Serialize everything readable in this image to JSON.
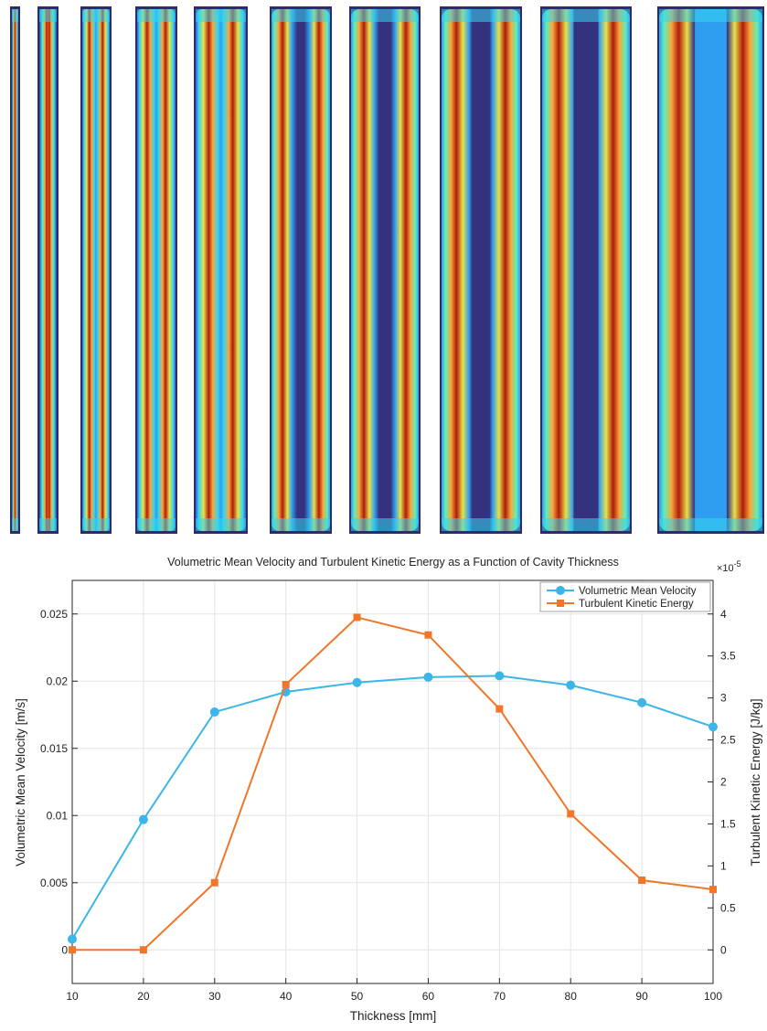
{
  "contour_strip": {
    "panel_count": 10,
    "thicknesses_mm": [
      10,
      20,
      30,
      40,
      50,
      60,
      70,
      80,
      90,
      100
    ],
    "colormap": [
      "#34317f",
      "#3a58d8",
      "#2f9df0",
      "#34d6ee",
      "#5ef0b8",
      "#a8f27a",
      "#e8e24a",
      "#f8a83a",
      "#f05a1c",
      "#b01a0c"
    ]
  },
  "chart_data": {
    "type": "line",
    "title": "Volumetric Mean Velocity and Turbulent Kinetic Energy as a Function of Cavity Thickness",
    "xlabel": "Thickness [mm]",
    "ylabel_left": "Volumetric Mean Velocity [m/s]",
    "ylabel_right": "Turbulent Kinetic Energy [J/kg]",
    "x": [
      10,
      20,
      30,
      40,
      50,
      60,
      70,
      80,
      90,
      100
    ],
    "xlim": [
      10,
      100
    ],
    "ylim_left": [
      -0.0025,
      0.0275
    ],
    "ylim_right": [
      -4e-06,
      4.4e-05
    ],
    "x_ticks": [
      "10",
      "20",
      "30",
      "40",
      "50",
      "60",
      "70",
      "80",
      "90",
      "100"
    ],
    "y_left_ticks": [
      "0",
      "0.005",
      "0.01",
      "0.015",
      "0.02",
      "0.025"
    ],
    "y_right_ticks": [
      "0",
      "0.5",
      "1",
      "1.5",
      "2",
      "2.5",
      "3",
      "3.5",
      "4"
    ],
    "right_exponent": "×10",
    "right_exponent_power": "-5",
    "grid": true,
    "legend_position": "top-right",
    "series": [
      {
        "name": "Volumetric Mean Velocity",
        "axis": "left",
        "marker": "circle",
        "color": "#3bb6e6",
        "values": [
          0.0008,
          0.0097,
          0.0177,
          0.0192,
          0.0199,
          0.0203,
          0.0204,
          0.0197,
          0.0184,
          0.0166
        ]
      },
      {
        "name": "Turbulent Kinetic Energy",
        "axis": "right",
        "marker": "square",
        "color": "#f0772a",
        "values": [
          0.0,
          0.0,
          8e-06,
          3.16e-05,
          3.96e-05,
          3.75e-05,
          2.87e-05,
          1.62e-05,
          8.3e-06,
          7.2e-06
        ]
      }
    ]
  }
}
